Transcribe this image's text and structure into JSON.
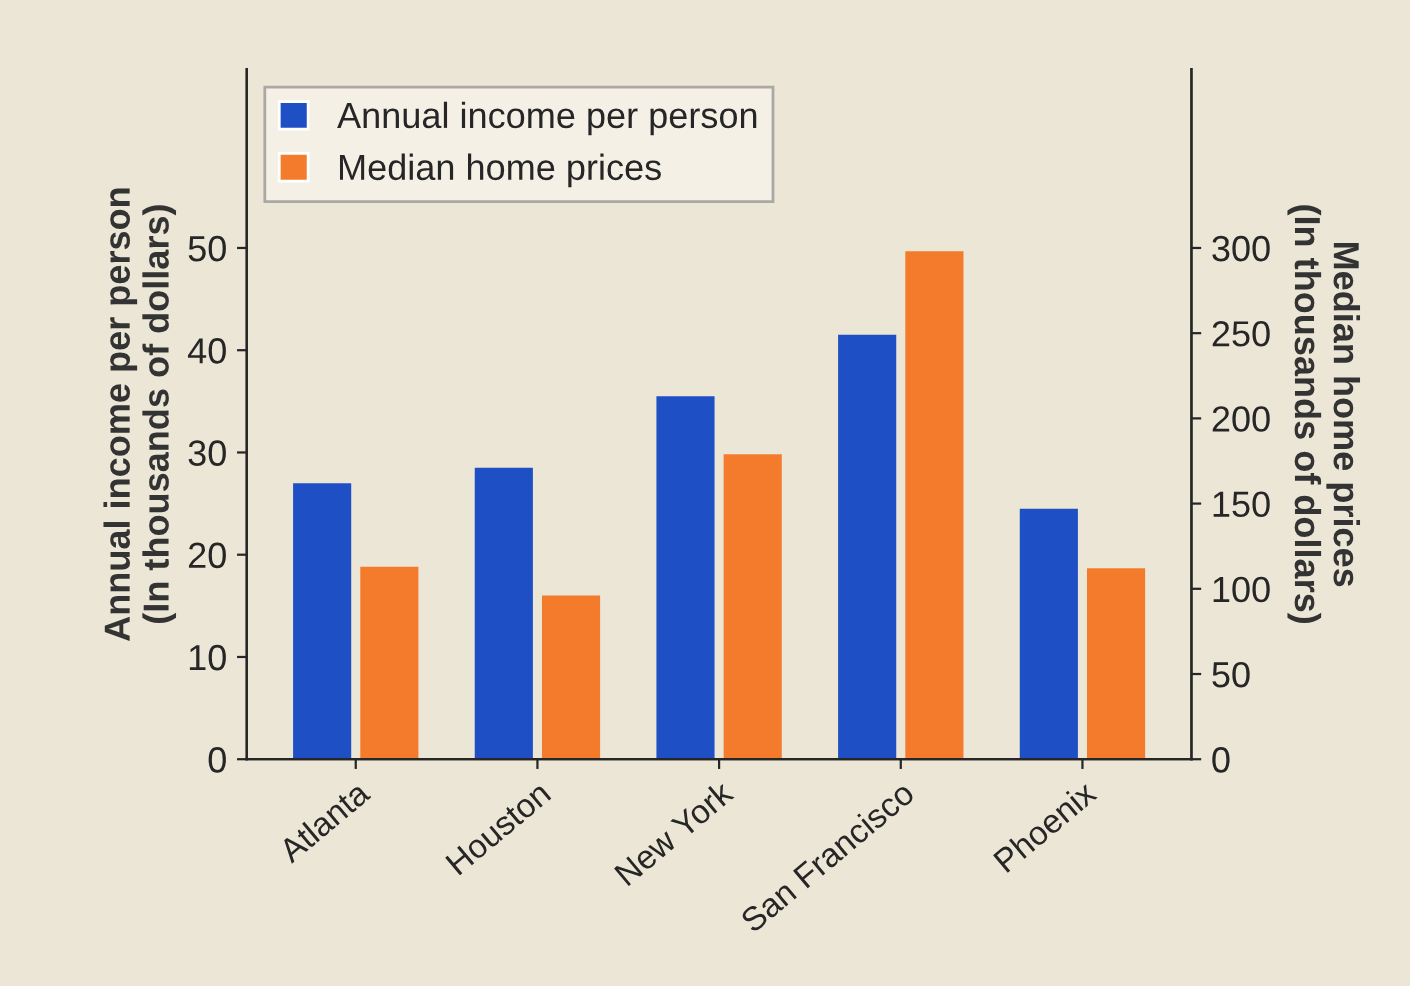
{
  "chart_data": {
    "type": "bar",
    "categories": [
      "Atlanta",
      "Houston",
      "New York",
      "San Francisco",
      "Phoenix"
    ],
    "series": [
      {
        "name": "Annual income per person",
        "color": "#1f4fc4",
        "values": [
          27,
          28.5,
          35.5,
          41.5,
          24.5
        ]
      },
      {
        "name": "Median home prices",
        "color": "#f47b2c",
        "values": [
          113,
          96,
          179,
          298,
          112
        ],
        "axis": "y2"
      }
    ],
    "ylabel": "Annual income per person\n(In thousands of dollars)",
    "y2label": "Median home prices\n(In thousands of dollars)",
    "ylim": [
      0,
      67.5
    ],
    "yticks": [
      0,
      10,
      20,
      30,
      40,
      50
    ],
    "y2lim": [
      0,
      405
    ],
    "y2ticks": [
      0,
      50,
      100,
      150,
      200,
      250,
      300
    ],
    "legend": "top left",
    "grid": false
  }
}
